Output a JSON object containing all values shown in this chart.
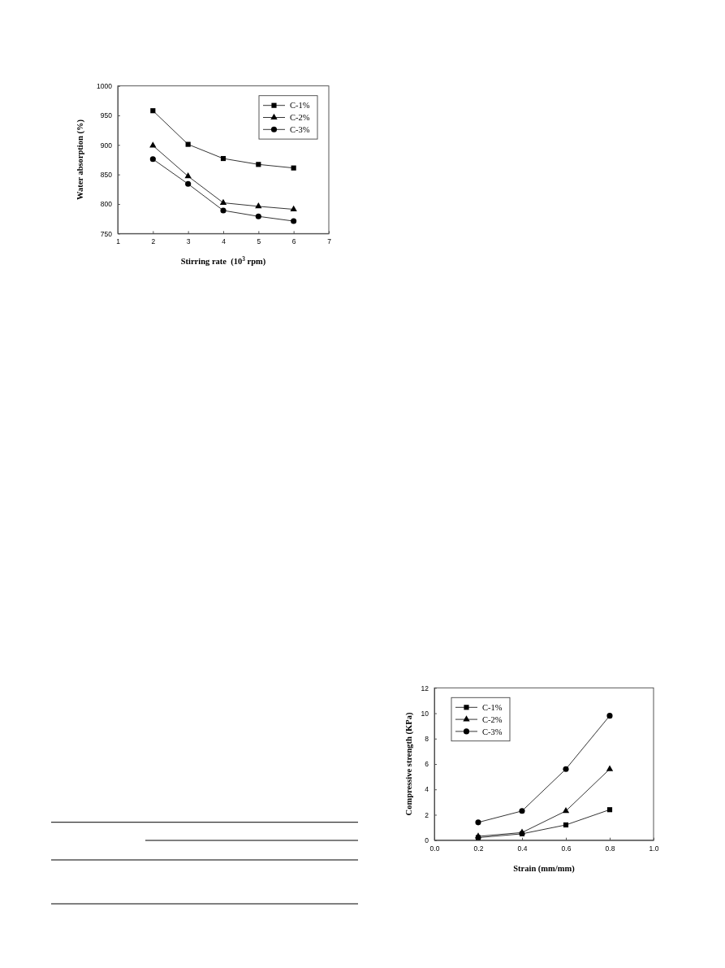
{
  "chart_data": [
    {
      "type": "line",
      "xlabel": "Stirring rate  (10$^{3}$ rpm)",
      "ylabel": "Water absorption (%)",
      "x": [
        2,
        3,
        4,
        5,
        6
      ],
      "xlim": [
        1,
        7
      ],
      "xticks": [
        1,
        2,
        3,
        4,
        5,
        6,
        7
      ],
      "ylim": [
        750,
        1000
      ],
      "yticks": [
        750,
        800,
        850,
        900,
        950,
        1000
      ],
      "legend": "top right",
      "series": [
        {
          "name": "C-1%",
          "color": "#000000",
          "marker": "square",
          "values": [
            958,
            901,
            877,
            867,
            861
          ]
        },
        {
          "name": "C-2%",
          "color": "#000000",
          "marker": "triangle",
          "values": [
            899,
            847,
            802,
            796,
            791
          ]
        },
        {
          "name": "C-3%",
          "color": "#000000",
          "marker": "circle",
          "values": [
            876,
            834,
            789,
            779,
            771
          ]
        }
      ]
    },
    {
      "type": "line",
      "xlabel": "Strain (mm/mm)",
      "ylabel": "Compressive strength (KPa)",
      "x": [
        0.2,
        0.4,
        0.6,
        0.8
      ],
      "xlim": [
        0,
        1
      ],
      "xticks": [
        {
          "value": 0,
          "label": "0.0"
        },
        0.2,
        0.4,
        0.6,
        0.8,
        {
          "value": 1,
          "label": "1.0"
        }
      ],
      "ylim": [
        0,
        12
      ],
      "yticks": [
        0,
        2,
        4,
        6,
        8,
        10,
        12
      ],
      "legend": "top left",
      "series": [
        {
          "name": "C-1%",
          "color": "#000000",
          "marker": "square",
          "values": [
            0.2,
            0.5,
            1.2,
            2.4
          ]
        },
        {
          "name": "C-2%",
          "color": "#000000",
          "marker": "triangle",
          "values": [
            0.3,
            0.6,
            2.3,
            5.6
          ]
        },
        {
          "name": "C-3%",
          "color": "#000000",
          "marker": "circle",
          "values": [
            1.4,
            2.3,
            5.6,
            9.8
          ]
        }
      ]
    }
  ]
}
